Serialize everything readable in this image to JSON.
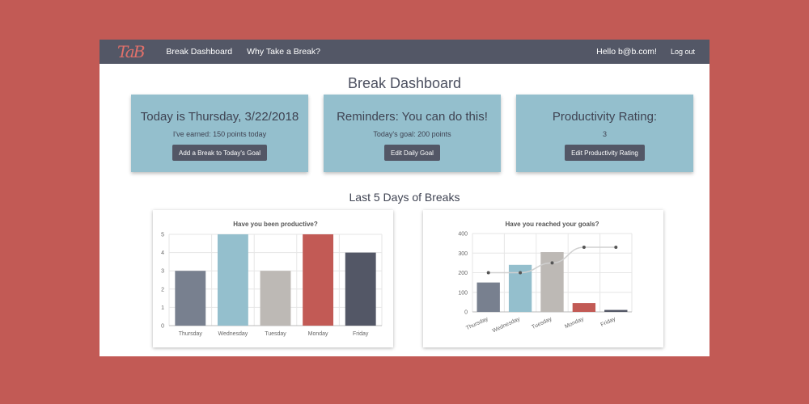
{
  "navbar": {
    "logo": "TaB",
    "links": [
      "Break Dashboard",
      "Why Take a Break?"
    ],
    "user_greeting": "Hello b@b.com!",
    "logout_label": "Log out"
  },
  "page_title": "Break Dashboard",
  "cards": [
    {
      "title": "Today is Thursday, 3/22/2018",
      "text": "I've earned: 150 points today",
      "button": "Add a Break to Today's Goal"
    },
    {
      "title": "Reminders: You can do this!",
      "text": "Today's goal: 200 points",
      "button": "Edit Daily Goal"
    },
    {
      "title": "Productivity Rating:",
      "text": "3",
      "button": "Edit Productivity Rating"
    }
  ],
  "section_title": "Last 5 Days of Breaks",
  "colors": {
    "background": "#c25a55",
    "navbar": "#535766",
    "card": "#94bfcd",
    "bars": [
      "#78808f",
      "#94bfcd",
      "#bdb9b5",
      "#c25a55",
      "#535766"
    ]
  },
  "chart_data": [
    {
      "type": "bar",
      "title": "Have you been productive?",
      "categories": [
        "Thursday",
        "Wednesday",
        "Tuesday",
        "Monday",
        "Friday"
      ],
      "values": [
        3,
        5,
        3,
        5,
        4
      ],
      "ylim": [
        0,
        5
      ],
      "yticks": [
        0,
        1,
        2,
        3,
        4,
        5
      ],
      "grid": true
    },
    {
      "type": "bar",
      "title": "Have you reached your goals?",
      "categories": [
        "Thursday",
        "Wednesday",
        "Tuesday",
        "Monday",
        "Friday"
      ],
      "series": [
        {
          "type": "bar",
          "values": [
            150,
            240,
            305,
            45,
            10
          ]
        },
        {
          "type": "line",
          "values": [
            200,
            200,
            250,
            330,
            330
          ]
        }
      ],
      "ylim": [
        0,
        400
      ],
      "yticks": [
        0,
        100,
        200,
        300,
        400
      ],
      "grid": true
    }
  ]
}
